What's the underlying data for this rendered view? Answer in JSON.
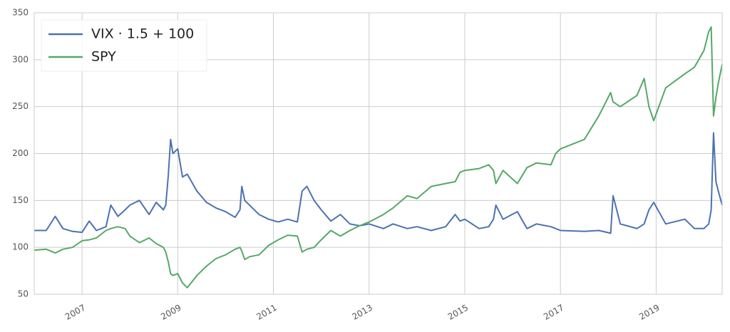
{
  "chart_data": {
    "type": "line",
    "x": [
      2006.0,
      2006.25,
      2006.44,
      2006.6,
      2006.8,
      2007.0,
      2007.15,
      2007.3,
      2007.5,
      2007.6,
      2007.75,
      2007.9,
      2008.0,
      2008.2,
      2008.4,
      2008.55,
      2008.7,
      2008.75,
      2008.8,
      2008.85,
      2008.9,
      2009.0,
      2009.1,
      2009.2,
      2009.4,
      2009.6,
      2009.8,
      2010.0,
      2010.2,
      2010.3,
      2010.34,
      2010.4,
      2010.5,
      2010.7,
      2010.9,
      2011.1,
      2011.3,
      2011.5,
      2011.6,
      2011.7,
      2011.85,
      2012.0,
      2012.2,
      2012.4,
      2012.6,
      2012.8,
      2013.0,
      2013.3,
      2013.5,
      2013.8,
      2014.0,
      2014.3,
      2014.6,
      2014.8,
      2014.9,
      2015.0,
      2015.3,
      2015.5,
      2015.6,
      2015.65,
      2015.8,
      2016.1,
      2016.3,
      2016.5,
      2016.8,
      2016.9,
      2017.0,
      2017.5,
      2017.8,
      2018.05,
      2018.1,
      2018.25,
      2018.6,
      2018.75,
      2018.85,
      2018.95,
      2019.2,
      2019.6,
      2019.8,
      2020.0,
      2020.1,
      2020.15,
      2020.2,
      2020.25,
      2020.3,
      2020.38
    ],
    "series": [
      {
        "name": "VIX · 1.5 + 100",
        "color": "#4c72b0",
        "values": [
          118,
          118,
          133,
          120,
          117,
          116,
          128,
          118,
          122,
          145,
          133,
          140,
          145,
          150,
          135,
          148,
          140,
          145,
          175,
          215,
          200,
          205,
          175,
          178,
          160,
          148,
          142,
          138,
          132,
          140,
          165,
          150,
          145,
          135,
          130,
          127,
          130,
          127,
          160,
          165,
          150,
          140,
          128,
          135,
          125,
          123,
          125,
          120,
          125,
          120,
          122,
          118,
          122,
          135,
          128,
          130,
          120,
          122,
          130,
          145,
          130,
          138,
          120,
          125,
          122,
          120,
          118,
          117,
          118,
          115,
          155,
          125,
          120,
          125,
          140,
          148,
          125,
          130,
          120,
          120,
          125,
          140,
          222,
          170,
          160,
          145
        ]
      },
      {
        "name": "SPY",
        "color": "#55a868",
        "values": [
          97,
          98,
          94,
          98,
          100,
          107,
          108,
          110,
          118,
          120,
          122,
          120,
          112,
          105,
          110,
          104,
          100,
          95,
          85,
          72,
          70,
          72,
          62,
          57,
          70,
          80,
          88,
          92,
          98,
          100,
          96,
          87,
          90,
          92,
          102,
          108,
          113,
          112,
          95,
          98,
          100,
          108,
          118,
          112,
          118,
          123,
          127,
          135,
          142,
          155,
          152,
          165,
          168,
          170,
          180,
          182,
          184,
          188,
          182,
          168,
          182,
          168,
          185,
          190,
          188,
          200,
          205,
          215,
          240,
          265,
          255,
          250,
          262,
          280,
          250,
          235,
          270,
          285,
          292,
          310,
          330,
          335,
          240,
          260,
          275,
          295
        ]
      }
    ],
    "xlim": [
      2006.0,
      2020.38
    ],
    "xticks": [
      2007,
      2009,
      2011,
      2013,
      2015,
      2017,
      2019
    ],
    "ylim": [
      50,
      350
    ],
    "yticks": [
      50,
      100,
      150,
      200,
      250,
      300,
      350
    ],
    "grid": true,
    "legend": "upper left"
  }
}
